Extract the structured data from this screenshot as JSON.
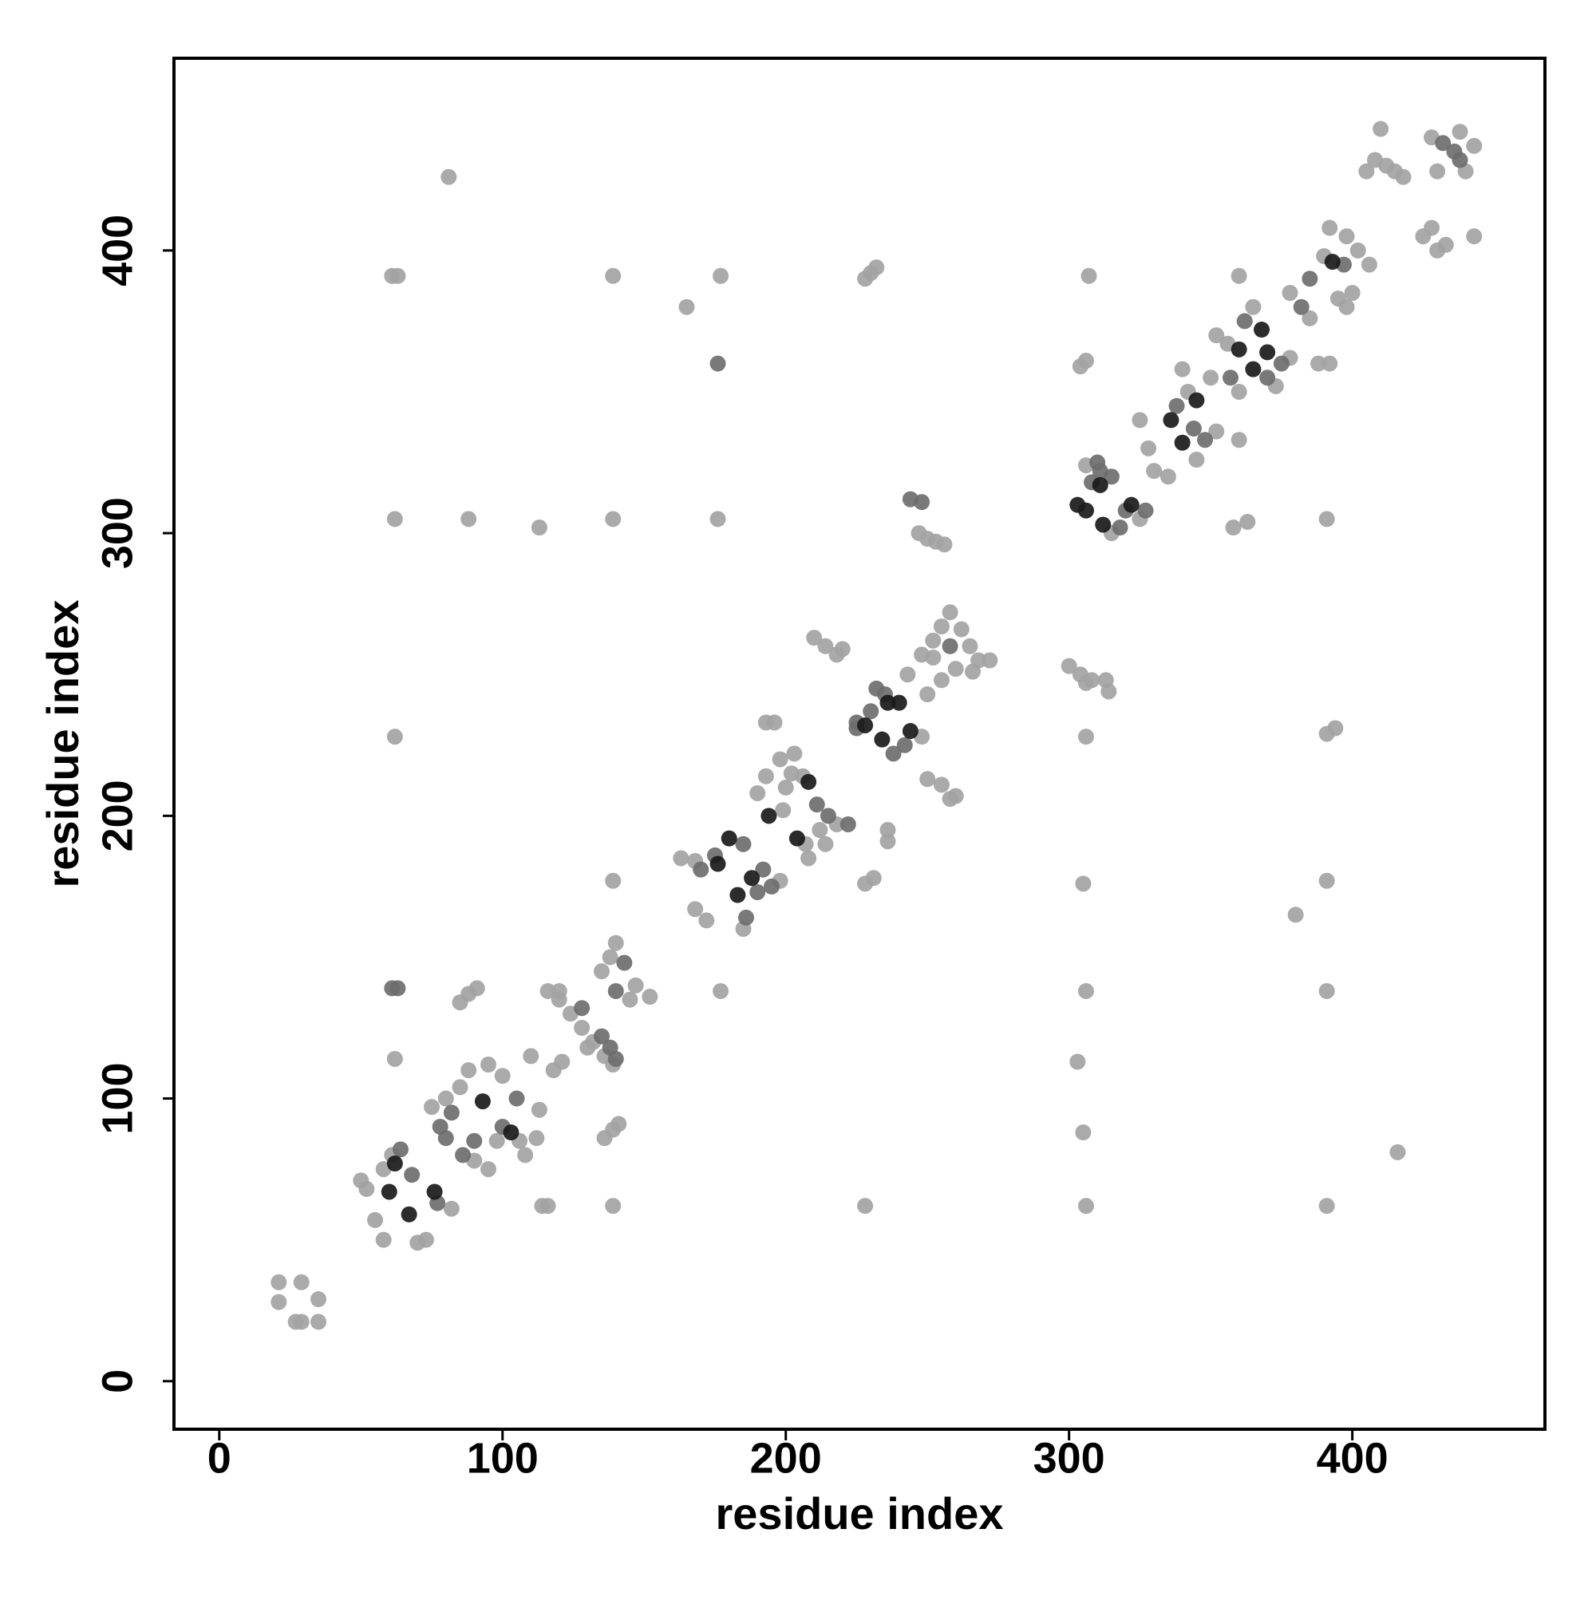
{
  "chart_data": {
    "type": "scatter",
    "xlabel": "residue index",
    "ylabel": "residue index",
    "xlim": [
      -16,
      468
    ],
    "ylim": [
      -17,
      468
    ],
    "xticks": [
      0,
      100,
      200,
      300,
      400
    ],
    "yticks": [
      0,
      100,
      200,
      300,
      400
    ],
    "series": [
      {
        "color": "#a3a3a3",
        "x": [
          81,
          61,
          63,
          139,
          177,
          165,
          228,
          230,
          232,
          307,
          304,
          306,
          21,
          21,
          29,
          27,
          29,
          35,
          35,
          62,
          88,
          113,
          139,
          176,
          391,
          62,
          306,
          114,
          116,
          139,
          228,
          306,
          391,
          139,
          305,
          391,
          177,
          306,
          391,
          303,
          305,
          416,
          380,
          62,
          85,
          88,
          91,
          136,
          139,
          141,
          50,
          52,
          55,
          58,
          70,
          73,
          82,
          61,
          58,
          75,
          80,
          85,
          88,
          90,
          95,
          98,
          106,
          108,
          95,
          100,
          110,
          113,
          116,
          120,
          124,
          128,
          132,
          136,
          139,
          120,
          135,
          138,
          140,
          147,
          152,
          145,
          130,
          118,
          121,
          112,
          168,
          172,
          185,
          198,
          199,
          200,
          206,
          203,
          198,
          193,
          190,
          196,
          193,
          207,
          212,
          218,
          214,
          208,
          163,
          168,
          202,
          248,
          231,
          228,
          236,
          236,
          210,
          214,
          220,
          218,
          243,
          248,
          252,
          255,
          258,
          262,
          265,
          268,
          260,
          255,
          250,
          272,
          266,
          252,
          250,
          255,
          260,
          258,
          247,
          250,
          253,
          256,
          300,
          304,
          308,
          306,
          313,
          314,
          315,
          325,
          306,
          328,
          325,
          342,
          345,
          352,
          330,
          335,
          350,
          340,
          352,
          356,
          365,
          373,
          378,
          360,
          363,
          358,
          360,
          360,
          378,
          390,
          395,
          398,
          400,
          385,
          392,
          398,
          402,
          406,
          388,
          392,
          391,
          394,
          405,
          408,
          412,
          415,
          410,
          418,
          425,
          430,
          428,
          433,
          443,
          428,
          438,
          443,
          430,
          440
        ],
        "y": [
          426,
          391,
          391,
          391,
          391,
          380,
          390,
          392,
          394,
          391,
          359,
          361,
          35,
          28,
          35,
          21,
          21,
          29,
          21,
          305,
          305,
          302,
          305,
          305,
          305,
          228,
          228,
          62,
          62,
          62,
          62,
          62,
          62,
          177,
          176,
          177,
          138,
          138,
          138,
          113,
          88,
          81,
          165,
          114,
          134,
          137,
          139,
          86,
          89,
          91,
          71,
          68,
          57,
          50,
          49,
          50,
          61,
          80,
          75,
          97,
          100,
          104,
          110,
          78,
          75,
          85,
          85,
          80,
          112,
          108,
          115,
          96,
          138,
          135,
          130,
          125,
          120,
          115,
          112,
          138,
          145,
          150,
          155,
          140,
          136,
          135,
          118,
          110,
          113,
          86,
          167,
          163,
          160,
          177,
          202,
          210,
          214,
          222,
          220,
          214,
          208,
          233,
          233,
          190,
          195,
          197,
          190,
          185,
          185,
          184,
          215,
          228,
          178,
          176,
          191,
          195,
          263,
          260,
          259,
          257,
          250,
          257,
          262,
          267,
          272,
          266,
          260,
          255,
          252,
          248,
          243,
          255,
          251,
          256,
          213,
          211,
          207,
          206,
          300,
          298,
          297,
          296,
          253,
          250,
          248,
          247,
          248,
          244,
          300,
          305,
          324,
          330,
          340,
          350,
          326,
          336,
          322,
          320,
          355,
          358,
          370,
          367,
          380,
          352,
          362,
          350,
          304,
          302,
          333,
          391,
          385,
          398,
          383,
          380,
          385,
          376,
          408,
          405,
          400,
          395,
          360,
          360,
          229,
          231,
          428,
          432,
          430,
          428,
          443,
          426,
          405,
          400,
          408,
          402,
          405,
          440,
          442,
          437,
          428,
          428
        ]
      },
      {
        "color": "#6e6e6e",
        "x": [
          176,
          61,
          63,
          64,
          68,
          77,
          78,
          82,
          86,
          100,
          80,
          90,
          105,
          128,
          143,
          140,
          135,
          138,
          140,
          170,
          175,
          185,
          190,
          186,
          192,
          195,
          211,
          215,
          222,
          225,
          230,
          232,
          235,
          238,
          242,
          225,
          244,
          248,
          258,
          308,
          311,
          315,
          318,
          320,
          327,
          310,
          338,
          348,
          344,
          362,
          370,
          375,
          357,
          385,
          397,
          382,
          432,
          436,
          438
        ],
        "y": [
          360,
          139,
          139,
          82,
          73,
          63,
          90,
          95,
          80,
          90,
          86,
          85,
          100,
          132,
          148,
          138,
          122,
          118,
          114,
          181,
          186,
          190,
          173,
          164,
          181,
          175,
          204,
          200,
          197,
          233,
          237,
          245,
          243,
          222,
          225,
          231,
          312,
          311,
          260,
          318,
          322,
          320,
          302,
          308,
          308,
          325,
          345,
          333,
          337,
          375,
          355,
          360,
          355,
          390,
          395,
          380,
          438,
          435,
          432
        ]
      },
      {
        "color": "#1a1a1a",
        "x": [
          60,
          67,
          76,
          62,
          93,
          103,
          180,
          188,
          183,
          176,
          194,
          204,
          208,
          236,
          240,
          228,
          234,
          244,
          303,
          306,
          311,
          312,
          322,
          336,
          345,
          340,
          360,
          368,
          365,
          370,
          393
        ],
        "y": [
          67,
          59,
          67,
          77,
          99,
          88,
          192,
          178,
          172,
          183,
          200,
          192,
          212,
          240,
          240,
          232,
          227,
          230,
          310,
          308,
          317,
          303,
          310,
          340,
          347,
          332,
          365,
          372,
          358,
          364,
          396
        ]
      }
    ]
  }
}
